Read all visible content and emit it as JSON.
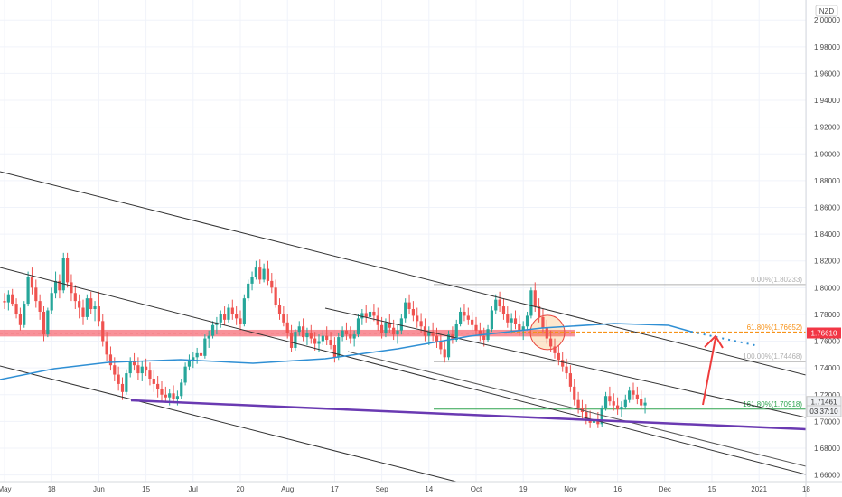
{
  "chart_data": {
    "type": "candlestick",
    "currency_label": "NZD",
    "y_ticks": [
      "2.00000",
      "1.98000",
      "1.96000",
      "1.94000",
      "1.92000",
      "1.90000",
      "1.88000",
      "1.86000",
      "1.84000",
      "1.82000",
      "1.80000",
      "1.78000",
      "1.76000",
      "1.74000",
      "1.72000",
      "1.70000",
      "1.68000",
      "1.66000"
    ],
    "y_tick_values": [
      2.0,
      1.98,
      1.96,
      1.94,
      1.92,
      1.9,
      1.88,
      1.86,
      1.84,
      1.82,
      1.8,
      1.78,
      1.76,
      1.74,
      1.72,
      1.7,
      1.68,
      1.66
    ],
    "ylim": [
      1.655,
      2.015
    ],
    "x_ticks": [
      "May",
      "18",
      "Jun",
      "15",
      "Jul",
      "20",
      "Aug",
      "17",
      "Sep",
      "14",
      "Oct",
      "19",
      "Nov",
      "16",
      "Dec",
      "15",
      "2021",
      "18"
    ],
    "x_tick_index": [
      0,
      12,
      24,
      36,
      48,
      60,
      72,
      84,
      96,
      108,
      120,
      132,
      144,
      156,
      168,
      180,
      192,
      204
    ],
    "bars_shown": 210,
    "price_tags": [
      {
        "label": "1.76610",
        "value": 1.7661,
        "color": "#f23645"
      },
      {
        "label": "1.71461",
        "value": 1.71461,
        "color": "#eef0f3"
      },
      {
        "label": "03:37:10",
        "value": 1.7077,
        "color": "#eef0f3"
      }
    ],
    "fib_levels": [
      {
        "label": "0.00%(1.80233)",
        "value": 1.80233,
        "color": "#b0b0b0"
      },
      {
        "label": "61.80%(1.76652)",
        "value": 1.76652,
        "color": "#f7931a"
      },
      {
        "label": "100.00%(1.74468)",
        "value": 1.74468,
        "color": "#b0b0b0"
      },
      {
        "label": "161.80%(1.70918)",
        "value": 1.70918,
        "color": "#2fa44f"
      }
    ],
    "resistance_zone": {
      "low": 1.7635,
      "high": 1.7685,
      "color": "#f23645"
    },
    "moving_average_color": "#2f8fd4",
    "support_line_color": "#6a3ab2",
    "candles": [
      [
        1.79,
        1.796,
        1.784,
        1.789
      ],
      [
        1.789,
        1.798,
        1.783,
        1.795
      ],
      [
        1.795,
        1.799,
        1.786,
        1.788
      ],
      [
        1.788,
        1.792,
        1.777,
        1.78
      ],
      [
        1.78,
        1.785,
        1.768,
        1.772
      ],
      [
        1.772,
        1.79,
        1.77,
        1.788
      ],
      [
        1.788,
        1.812,
        1.786,
        1.808
      ],
      [
        1.808,
        1.815,
        1.795,
        1.8
      ],
      [
        1.8,
        1.806,
        1.785,
        1.79
      ],
      [
        1.79,
        1.795,
        1.776,
        1.782
      ],
      [
        1.782,
        1.786,
        1.76,
        1.765
      ],
      [
        1.765,
        1.785,
        1.763,
        1.783
      ],
      [
        1.783,
        1.8,
        1.78,
        1.796
      ],
      [
        1.796,
        1.812,
        1.792,
        1.805
      ],
      [
        1.805,
        1.81,
        1.792,
        1.798
      ],
      [
        1.798,
        1.826,
        1.796,
        1.822
      ],
      [
        1.822,
        1.826,
        1.8,
        1.804
      ],
      [
        1.804,
        1.81,
        1.79,
        1.796
      ],
      [
        1.796,
        1.802,
        1.784,
        1.79
      ],
      [
        1.79,
        1.795,
        1.777,
        1.785
      ],
      [
        1.785,
        1.791,
        1.772,
        1.778
      ],
      [
        1.778,
        1.795,
        1.776,
        1.792
      ],
      [
        1.792,
        1.797,
        1.78,
        1.784
      ],
      [
        1.784,
        1.79,
        1.775,
        1.786
      ],
      [
        1.786,
        1.797,
        1.771,
        1.775
      ],
      [
        1.775,
        1.78,
        1.756,
        1.76
      ],
      [
        1.76,
        1.767,
        1.745,
        1.75
      ],
      [
        1.75,
        1.756,
        1.738,
        1.742
      ],
      [
        1.742,
        1.748,
        1.73,
        1.735
      ],
      [
        1.735,
        1.741,
        1.723,
        1.728
      ],
      [
        1.728,
        1.733,
        1.716,
        1.722
      ],
      [
        1.722,
        1.739,
        1.72,
        1.736
      ],
      [
        1.736,
        1.748,
        1.733,
        1.745
      ],
      [
        1.745,
        1.751,
        1.738,
        1.742
      ],
      [
        1.742,
        1.748,
        1.731,
        1.736
      ],
      [
        1.736,
        1.745,
        1.73,
        1.741
      ],
      [
        1.741,
        1.747,
        1.734,
        1.738
      ],
      [
        1.738,
        1.744,
        1.727,
        1.732
      ],
      [
        1.732,
        1.738,
        1.722,
        1.728
      ],
      [
        1.728,
        1.734,
        1.718,
        1.724
      ],
      [
        1.724,
        1.73,
        1.715,
        1.72
      ],
      [
        1.72,
        1.726,
        1.714,
        1.718
      ],
      [
        1.718,
        1.724,
        1.712,
        1.721
      ],
      [
        1.721,
        1.727,
        1.714,
        1.717
      ],
      [
        1.717,
        1.723,
        1.712,
        1.719
      ],
      [
        1.719,
        1.732,
        1.717,
        1.729
      ],
      [
        1.729,
        1.744,
        1.727,
        1.741
      ],
      [
        1.741,
        1.75,
        1.738,
        1.746
      ],
      [
        1.746,
        1.752,
        1.74,
        1.748
      ],
      [
        1.748,
        1.755,
        1.743,
        1.751
      ],
      [
        1.751,
        1.757,
        1.745,
        1.749
      ],
      [
        1.749,
        1.765,
        1.747,
        1.762
      ],
      [
        1.762,
        1.768,
        1.755,
        1.764
      ],
      [
        1.764,
        1.775,
        1.762,
        1.772
      ],
      [
        1.772,
        1.778,
        1.765,
        1.774
      ],
      [
        1.774,
        1.783,
        1.77,
        1.78
      ],
      [
        1.78,
        1.786,
        1.772,
        1.776
      ],
      [
        1.776,
        1.788,
        1.774,
        1.785
      ],
      [
        1.785,
        1.791,
        1.776,
        1.78
      ],
      [
        1.78,
        1.786,
        1.772,
        1.777
      ],
      [
        1.777,
        1.783,
        1.768,
        1.773
      ],
      [
        1.773,
        1.795,
        1.771,
        1.792
      ],
      [
        1.792,
        1.806,
        1.79,
        1.803
      ],
      [
        1.803,
        1.812,
        1.798,
        1.808
      ],
      [
        1.808,
        1.82,
        1.806,
        1.815
      ],
      [
        1.815,
        1.821,
        1.803,
        1.806
      ],
      [
        1.806,
        1.818,
        1.804,
        1.814
      ],
      [
        1.814,
        1.82,
        1.802,
        1.805
      ],
      [
        1.805,
        1.811,
        1.796,
        1.8
      ],
      [
        1.8,
        1.806,
        1.785,
        1.787
      ],
      [
        1.787,
        1.792,
        1.776,
        1.78
      ],
      [
        1.78,
        1.786,
        1.771,
        1.774
      ],
      [
        1.774,
        1.78,
        1.762,
        1.766
      ],
      [
        1.766,
        1.772,
        1.752,
        1.755
      ],
      [
        1.755,
        1.769,
        1.753,
        1.767
      ],
      [
        1.767,
        1.775,
        1.764,
        1.771
      ],
      [
        1.771,
        1.777,
        1.76,
        1.763
      ],
      [
        1.763,
        1.77,
        1.757,
        1.766
      ],
      [
        1.766,
        1.772,
        1.758,
        1.762
      ],
      [
        1.762,
        1.767,
        1.753,
        1.758
      ],
      [
        1.758,
        1.765,
        1.752,
        1.76
      ],
      [
        1.76,
        1.768,
        1.757,
        1.764
      ],
      [
        1.764,
        1.771,
        1.757,
        1.761
      ],
      [
        1.761,
        1.767,
        1.754,
        1.757
      ],
      [
        1.757,
        1.763,
        1.744,
        1.748
      ],
      [
        1.748,
        1.766,
        1.746,
        1.763
      ],
      [
        1.763,
        1.771,
        1.76,
        1.768
      ],
      [
        1.768,
        1.774,
        1.761,
        1.765
      ],
      [
        1.765,
        1.771,
        1.758,
        1.762
      ],
      [
        1.762,
        1.768,
        1.756,
        1.765
      ],
      [
        1.765,
        1.78,
        1.763,
        1.777
      ],
      [
        1.777,
        1.784,
        1.772,
        1.781
      ],
      [
        1.781,
        1.787,
        1.774,
        1.778
      ],
      [
        1.778,
        1.785,
        1.772,
        1.782
      ],
      [
        1.782,
        1.788,
        1.775,
        1.779
      ],
      [
        1.779,
        1.785,
        1.768,
        1.772
      ],
      [
        1.772,
        1.778,
        1.762,
        1.766
      ],
      [
        1.766,
        1.777,
        1.763,
        1.774
      ],
      [
        1.774,
        1.78,
        1.766,
        1.77
      ],
      [
        1.77,
        1.776,
        1.761,
        1.765
      ],
      [
        1.765,
        1.772,
        1.758,
        1.768
      ],
      [
        1.768,
        1.78,
        1.765,
        1.777
      ],
      [
        1.777,
        1.792,
        1.774,
        1.789
      ],
      [
        1.789,
        1.795,
        1.78,
        1.784
      ],
      [
        1.784,
        1.79,
        1.775,
        1.779
      ],
      [
        1.779,
        1.785,
        1.77,
        1.775
      ],
      [
        1.775,
        1.781,
        1.766,
        1.771
      ],
      [
        1.771,
        1.777,
        1.76,
        1.764
      ],
      [
        1.764,
        1.771,
        1.757,
        1.767
      ],
      [
        1.767,
        1.774,
        1.76,
        1.764
      ],
      [
        1.764,
        1.77,
        1.755,
        1.759
      ],
      [
        1.759,
        1.765,
        1.75,
        1.754
      ],
      [
        1.754,
        1.76,
        1.744,
        1.748
      ],
      [
        1.748,
        1.768,
        1.746,
        1.765
      ],
      [
        1.765,
        1.771,
        1.758,
        1.761
      ],
      [
        1.761,
        1.776,
        1.759,
        1.773
      ],
      [
        1.773,
        1.785,
        1.771,
        1.782
      ],
      [
        1.782,
        1.788,
        1.775,
        1.779
      ],
      [
        1.779,
        1.785,
        1.772,
        1.776
      ],
      [
        1.776,
        1.782,
        1.768,
        1.772
      ],
      [
        1.772,
        1.778,
        1.764,
        1.768
      ],
      [
        1.768,
        1.774,
        1.76,
        1.764
      ],
      [
        1.764,
        1.77,
        1.756,
        1.761
      ],
      [
        1.761,
        1.772,
        1.759,
        1.769
      ],
      [
        1.769,
        1.786,
        1.767,
        1.783
      ],
      [
        1.783,
        1.795,
        1.78,
        1.791
      ],
      [
        1.791,
        1.797,
        1.782,
        1.786
      ],
      [
        1.786,
        1.792,
        1.776,
        1.78
      ],
      [
        1.78,
        1.786,
        1.77,
        1.774
      ],
      [
        1.774,
        1.781,
        1.767,
        1.777
      ],
      [
        1.777,
        1.783,
        1.769,
        1.773
      ],
      [
        1.773,
        1.779,
        1.764,
        1.768
      ],
      [
        1.768,
        1.775,
        1.761,
        1.771
      ],
      [
        1.771,
        1.782,
        1.768,
        1.779
      ],
      [
        1.779,
        1.8,
        1.777,
        1.798
      ],
      [
        1.798,
        1.804,
        1.782,
        1.786
      ],
      [
        1.786,
        1.792,
        1.774,
        1.778
      ],
      [
        1.778,
        1.784,
        1.766,
        1.77
      ],
      [
        1.77,
        1.776,
        1.758,
        1.762
      ],
      [
        1.762,
        1.768,
        1.752,
        1.756
      ],
      [
        1.756,
        1.762,
        1.747,
        1.751
      ],
      [
        1.751,
        1.757,
        1.742,
        1.746
      ],
      [
        1.746,
        1.752,
        1.737,
        1.741
      ],
      [
        1.741,
        1.747,
        1.732,
        1.736
      ],
      [
        1.736,
        1.742,
        1.722,
        1.726
      ],
      [
        1.726,
        1.732,
        1.712,
        1.716
      ],
      [
        1.716,
        1.722,
        1.706,
        1.71
      ],
      [
        1.71,
        1.716,
        1.702,
        1.707
      ],
      [
        1.707,
        1.713,
        1.698,
        1.702
      ],
      [
        1.702,
        1.708,
        1.695,
        1.699
      ],
      [
        1.699,
        1.705,
        1.693,
        1.701
      ],
      [
        1.701,
        1.707,
        1.695,
        1.698
      ],
      [
        1.698,
        1.712,
        1.696,
        1.71
      ],
      [
        1.71,
        1.722,
        1.708,
        1.719
      ],
      [
        1.719,
        1.726,
        1.712,
        1.715
      ],
      [
        1.715,
        1.721,
        1.708,
        1.712
      ],
      [
        1.712,
        1.718,
        1.705,
        1.709
      ],
      [
        1.709,
        1.715,
        1.703,
        1.711
      ],
      [
        1.711,
        1.72,
        1.709,
        1.716
      ],
      [
        1.716,
        1.726,
        1.714,
        1.723
      ],
      [
        1.723,
        1.729,
        1.716,
        1.72
      ],
      [
        1.72,
        1.726,
        1.713,
        1.717
      ],
      [
        1.717,
        1.723,
        1.709,
        1.712
      ],
      [
        1.712,
        1.718,
        1.706,
        1.714
      ]
    ]
  }
}
